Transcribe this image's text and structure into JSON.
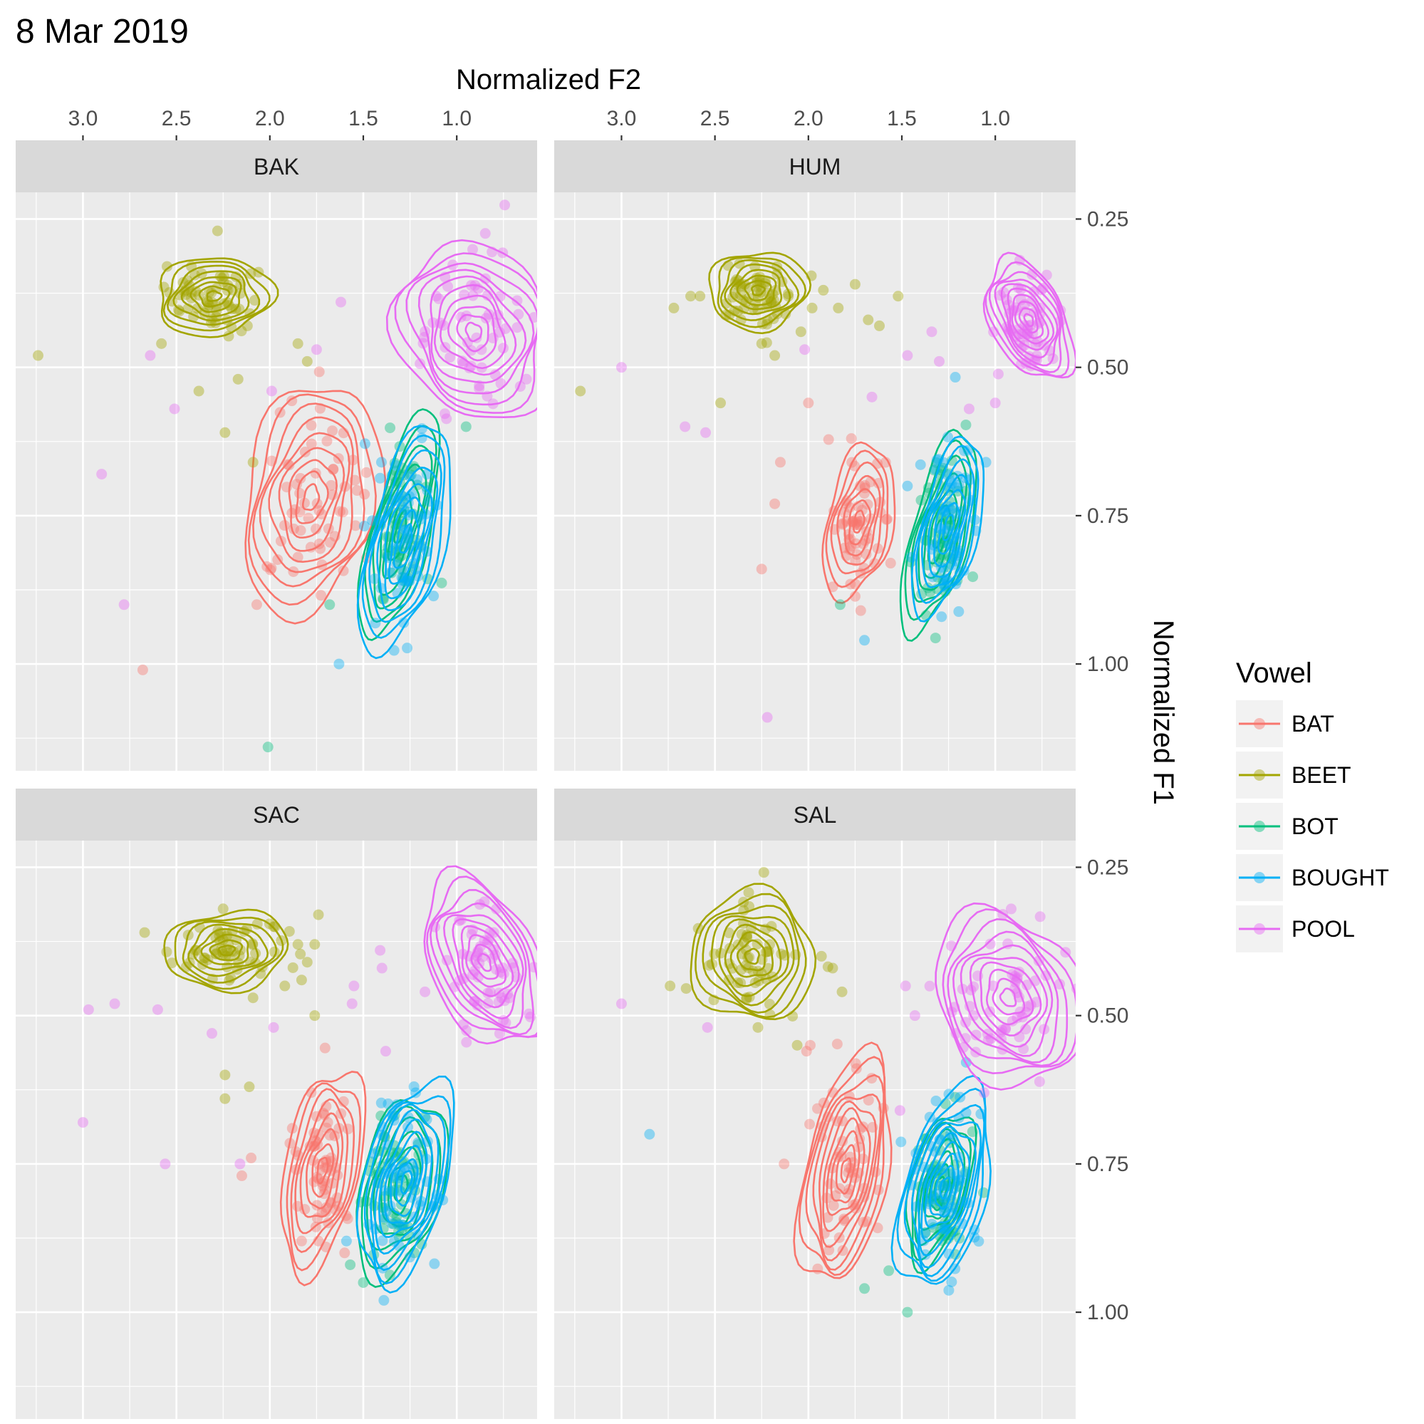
{
  "title": "8 Mar 2019",
  "chart_data": {
    "type": "scatter",
    "subtype": "faceted scatter with 2D density contours",
    "xlabel": "Normalized F2",
    "ylabel": "Normalized F1",
    "x_axis_position": "top",
    "y_axis_position": "right",
    "x_reversed": true,
    "y_reversed": true,
    "xlim": [
      3.36,
      0.57
    ],
    "ylim": [
      0.205,
      1.18
    ],
    "x_ticks": [
      3.0,
      2.5,
      2.0,
      1.5,
      1.0
    ],
    "x_tick_labels": [
      "3.0",
      "2.5",
      "2.0",
      "1.5",
      "1.0"
    ],
    "y_ticks": [
      0.25,
      0.5,
      0.75,
      1.0
    ],
    "y_tick_labels": [
      "0.25",
      "0.50",
      "0.75",
      "1.00"
    ],
    "grid": true,
    "legend": {
      "title": "Vowel",
      "position": "right",
      "entries": [
        "BAT",
        "BEET",
        "BOT",
        "BOUGHT",
        "POOL"
      ]
    },
    "colors": {
      "BAT": "#F8766D",
      "BEET": "#A3A500",
      "BOT": "#00BF7D",
      "BOUGHT": "#00B0F6",
      "POOL": "#E76BF3"
    },
    "panel_background": "#EBEBEB",
    "strip_background": "#D9D9D9",
    "facets": [
      {
        "name": "BAK",
        "vowels": {
          "BEET": {
            "center": [
              2.3,
              0.38
            ],
            "spread": [
              0.14,
              0.03
            ],
            "contour_levels": 8,
            "outliers": [
              [
                3.24,
                0.48
              ],
              [
                2.28,
                0.27
              ],
              [
                2.55,
                0.33
              ],
              [
                2.42,
                0.33
              ],
              [
                2.58,
                0.46
              ],
              [
                2.12,
                0.43
              ],
              [
                1.85,
                0.46
              ],
              [
                1.8,
                0.49
              ],
              [
                2.17,
                0.52
              ],
              [
                2.38,
                0.54
              ],
              [
                2.24,
                0.61
              ],
              [
                2.09,
                0.66
              ]
            ]
          },
          "BAT": {
            "center": [
              1.78,
              0.72
            ],
            "spread": [
              0.16,
              0.09
            ],
            "contour_levels": 9,
            "outliers": [
              [
                2.07,
                0.9
              ],
              [
                2.68,
                1.01
              ],
              [
                1.85,
                0.82
              ]
            ]
          },
          "BOT": {
            "center": [
              1.3,
              0.77
            ],
            "spread": [
              0.07,
              0.09
            ],
            "contour_levels": 7,
            "outliers": [
              [
                0.95,
                0.6
              ],
              [
                1.68,
                0.9
              ],
              [
                2.01,
                1.14
              ]
            ]
          },
          "BOUGHT": {
            "center": [
              1.27,
              0.79
            ],
            "spread": [
              0.09,
              0.09
            ],
            "contour_levels": 8,
            "outliers": [
              [
                1.63,
                1.0
              ],
              [
                1.16,
                0.68
              ]
            ]
          },
          "POOL": {
            "center": [
              0.91,
              0.44
            ],
            "spread": [
              0.18,
              0.07
            ],
            "contour_levels": 10,
            "outliers": [
              [
                2.9,
                0.68
              ],
              [
                2.78,
                0.9
              ],
              [
                2.64,
                0.48
              ],
              [
                2.51,
                0.57
              ],
              [
                1.99,
                0.54
              ],
              [
                1.11,
                0.38
              ],
              [
                1.62,
                0.39
              ],
              [
                1.75,
                0.47
              ]
            ]
          }
        }
      },
      {
        "name": "HUM",
        "vowels": {
          "BEET": {
            "center": [
              2.27,
              0.37
            ],
            "spread": [
              0.12,
              0.03
            ],
            "contour_levels": 8,
            "outliers": [
              [
                3.22,
                0.54
              ],
              [
                2.72,
                0.4
              ],
              [
                2.63,
                0.38
              ],
              [
                2.58,
                0.38
              ],
              [
                2.25,
                0.46
              ],
              [
                2.18,
                0.48
              ],
              [
                2.04,
                0.44
              ],
              [
                1.98,
                0.4
              ],
              [
                1.92,
                0.37
              ],
              [
                1.84,
                0.4
              ],
              [
                1.75,
                0.36
              ],
              [
                1.68,
                0.42
              ],
              [
                1.62,
                0.43
              ],
              [
                1.52,
                0.38
              ],
              [
                2.47,
                0.56
              ],
              [
                2.36,
                0.42
              ]
            ]
          },
          "BAT": {
            "center": [
              1.73,
              0.76
            ],
            "spread": [
              0.08,
              0.06
            ],
            "contour_levels": 7,
            "outliers": [
              [
                2.0,
                0.56
              ],
              [
                1.77,
                0.62
              ],
              [
                2.15,
                0.66
              ],
              [
                2.18,
                0.73
              ],
              [
                1.87,
                0.87
              ],
              [
                1.72,
                0.91
              ],
              [
                1.56,
                0.83
              ],
              [
                2.25,
                0.84
              ]
            ]
          },
          "BOT": {
            "center": [
              1.3,
              0.78
            ],
            "spread": [
              0.07,
              0.08
            ],
            "contour_levels": 7,
            "outliers": [
              [
                1.83,
                0.9
              ],
              [
                1.28,
                0.67
              ]
            ]
          },
          "BOUGHT": {
            "center": [
              1.25,
              0.77
            ],
            "spread": [
              0.07,
              0.07
            ],
            "contour_levels": 7,
            "outliers": [
              [
                1.7,
                0.96
              ],
              [
                1.05,
                0.66
              ],
              [
                1.14,
                0.69
              ],
              [
                1.47,
                0.7
              ]
            ]
          },
          "POOL": {
            "center": [
              0.82,
              0.42
            ],
            "spread": [
              0.09,
              0.05
            ],
            "contour_levels": 10,
            "outliers": [
              [
                3.0,
                0.5
              ],
              [
                2.66,
                0.6
              ],
              [
                2.55,
                0.61
              ],
              [
                2.02,
                0.47
              ],
              [
                2.22,
                1.09
              ],
              [
                1.66,
                0.55
              ],
              [
                1.47,
                0.48
              ],
              [
                1.34,
                0.44
              ],
              [
                1.14,
                0.57
              ],
              [
                1.0,
                0.56
              ],
              [
                1.3,
                0.49
              ]
            ]
          }
        }
      },
      {
        "name": "SAC",
        "vowels": {
          "BEET": {
            "center": [
              2.23,
              0.39
            ],
            "spread": [
              0.15,
              0.03
            ],
            "contour_levels": 8,
            "outliers": [
              [
                2.67,
                0.36
              ],
              [
                2.25,
                0.32
              ],
              [
                1.74,
                0.33
              ],
              [
                1.85,
                0.38
              ],
              [
                1.76,
                0.38
              ],
              [
                1.8,
                0.41
              ],
              [
                1.83,
                0.44
              ],
              [
                1.92,
                0.45
              ],
              [
                1.76,
                0.5
              ],
              [
                2.09,
                0.47
              ],
              [
                2.24,
                0.6
              ],
              [
                2.11,
                0.62
              ],
              [
                2.24,
                0.64
              ],
              [
                1.98,
                0.35
              ]
            ]
          },
          "BAT": {
            "center": [
              1.72,
              0.76
            ],
            "spread": [
              0.09,
              0.08
            ],
            "contour_levels": 8,
            "outliers": [
              [
                2.1,
                0.74
              ],
              [
                2.15,
                0.77
              ],
              [
                1.88,
                0.69
              ],
              [
                1.75,
                0.67
              ],
              [
                1.69,
                0.68
              ],
              [
                1.63,
                0.69
              ],
              [
                1.74,
                0.88
              ],
              [
                1.83,
                0.88
              ],
              [
                1.7,
                0.89
              ],
              [
                1.6,
                0.9
              ]
            ]
          },
          "BOT": {
            "center": [
              1.3,
              0.79
            ],
            "spread": [
              0.1,
              0.07
            ],
            "contour_levels": 7,
            "outliers": [
              [
                1.57,
                0.92
              ],
              [
                1.5,
                0.95
              ]
            ]
          },
          "BOUGHT": {
            "center": [
              1.27,
              0.78
            ],
            "spread": [
              0.1,
              0.08
            ],
            "contour_levels": 9,
            "outliers": [
              [
                1.39,
                0.98
              ],
              [
                1.59,
                0.88
              ],
              [
                1.22,
                0.63
              ],
              [
                1.32,
                0.65
              ]
            ]
          },
          "POOL": {
            "center": [
              0.85,
              0.41
            ],
            "spread": [
              0.13,
              0.07
            ],
            "contour_levels": 10,
            "outliers": [
              [
                2.97,
                0.49
              ],
              [
                2.83,
                0.48
              ],
              [
                2.6,
                0.49
              ],
              [
                2.56,
                0.75
              ],
              [
                3.0,
                0.68
              ],
              [
                2.31,
                0.53
              ],
              [
                2.16,
                0.75
              ],
              [
                1.98,
                0.52
              ],
              [
                1.41,
                0.39
              ],
              [
                1.56,
                0.48
              ],
              [
                1.4,
                0.42
              ],
              [
                1.55,
                0.45
              ],
              [
                1.38,
                0.56
              ],
              [
                1.17,
                0.46
              ]
            ]
          }
        }
      },
      {
        "name": "SAL",
        "vowels": {
          "BEET": {
            "center": [
              2.3,
              0.4
            ],
            "spread": [
              0.15,
              0.05
            ],
            "contour_levels": 9,
            "outliers": [
              [
                2.74,
                0.45
              ],
              [
                2.27,
                0.52
              ],
              [
                2.06,
                0.55
              ],
              [
                1.93,
                0.4
              ],
              [
                1.87,
                0.42
              ],
              [
                1.82,
                0.46
              ]
            ]
          },
          "BAT": {
            "center": [
              1.8,
              0.76
            ],
            "spread": [
              0.1,
              0.09
            ],
            "contour_levels": 10,
            "outliers": [
              [
                2.13,
                0.75
              ],
              [
                2.01,
                0.56
              ],
              [
                1.99,
                0.55
              ]
            ]
          },
          "BOT": {
            "center": [
              1.3,
              0.79
            ],
            "spread": [
              0.07,
              0.06
            ],
            "contour_levels": 7,
            "outliers": [
              [
                1.7,
                0.96
              ],
              [
                1.57,
                0.93
              ],
              [
                1.47,
                1.0
              ]
            ]
          },
          "BOUGHT": {
            "center": [
              1.27,
              0.79
            ],
            "spread": [
              0.1,
              0.08
            ],
            "contour_levels": 10,
            "outliers": [
              [
                2.85,
                0.7
              ]
            ]
          },
          "POOL": {
            "center": [
              0.93,
              0.47
            ],
            "spread": [
              0.17,
              0.07
            ],
            "contour_levels": 10,
            "outliers": [
              [
                3.0,
                0.48
              ],
              [
                2.54,
                0.52
              ],
              [
                1.48,
                0.45
              ],
              [
                1.51,
                0.66
              ],
              [
                1.43,
                0.5
              ],
              [
                1.21,
                0.53
              ],
              [
                1.06,
                0.63
              ]
            ]
          }
        }
      }
    ]
  }
}
